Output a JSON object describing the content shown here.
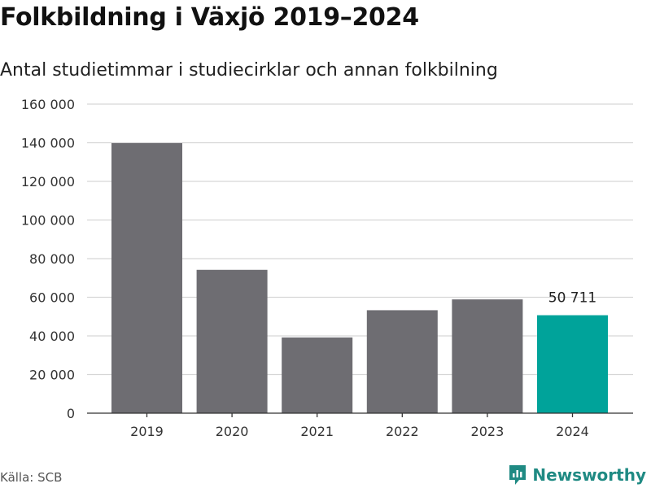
{
  "title": "Folkbildning i Växjö 2019–2024",
  "subtitle": "Antal studietimmar i studiecirklar och annan folkbilning",
  "source": "Källa: SCB",
  "brand": {
    "name": "Newsworthy",
    "icon": "newsworthy-logo-icon"
  },
  "colors": {
    "bar": "#6e6d72",
    "highlight": "#00a39a",
    "grid": "#d6d6d6",
    "brand": "#1f8a83"
  },
  "chart_data": {
    "type": "bar",
    "categories": [
      "2019",
      "2020",
      "2021",
      "2022",
      "2023",
      "2024"
    ],
    "values": [
      139800,
      74200,
      39200,
      53300,
      58900,
      50711
    ],
    "highlight_index": 5,
    "data_labels": [
      {
        "index": 5,
        "text": "50 711"
      }
    ],
    "yticks": [
      "0",
      "20 000",
      "40 000",
      "60 000",
      "80 000",
      "100 000",
      "120 000",
      "140 000",
      "160 000"
    ],
    "ylim": [
      0,
      160000
    ],
    "grid": true
  }
}
